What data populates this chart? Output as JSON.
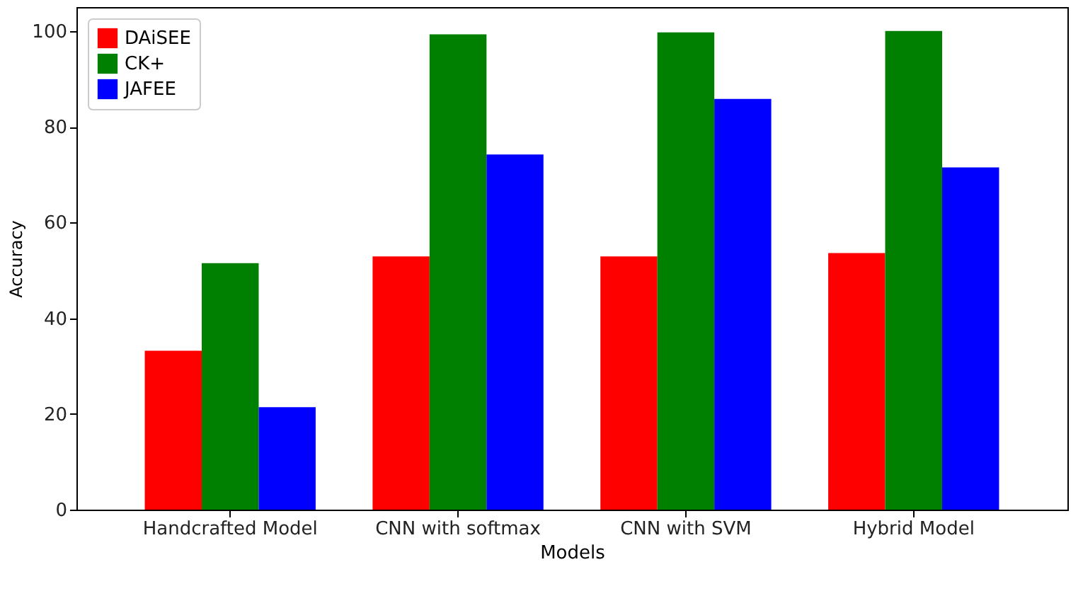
{
  "chart_data": {
    "type": "bar",
    "xlabel": "Models",
    "ylabel": "Accuracy",
    "categories": [
      "Handcrafted Model",
      "CNN with softmax",
      "CNN with SVM",
      "Hybrid Model"
    ],
    "series": [
      {
        "name": "DAiSEE",
        "color": "#ff0000",
        "values": [
          33.2,
          52.9,
          52.9,
          53.6
        ]
      },
      {
        "name": "CK+",
        "color": "#008000",
        "values": [
          51.5,
          99.3,
          99.7,
          100
        ]
      },
      {
        "name": "JAFEE",
        "color": "#0000ff",
        "values": [
          21.4,
          74.2,
          85.8,
          71.5
        ]
      }
    ],
    "ylim": [
      0,
      105
    ],
    "yticks": [
      0,
      20,
      40,
      60,
      80,
      100
    ],
    "grid": false,
    "legend": "top left"
  }
}
